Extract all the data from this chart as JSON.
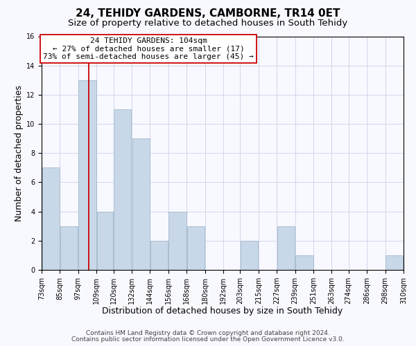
{
  "title": "24, TEHIDY GARDENS, CAMBORNE, TR14 0ET",
  "subtitle": "Size of property relative to detached houses in South Tehidy",
  "xlabel": "Distribution of detached houses by size in South Tehidy",
  "ylabel": "Number of detached properties",
  "footer_line1": "Contains HM Land Registry data © Crown copyright and database right 2024.",
  "footer_line2": "Contains public sector information licensed under the Open Government Licence v3.0.",
  "bin_edges": [
    73,
    85,
    97,
    109,
    120,
    132,
    144,
    156,
    168,
    180,
    192,
    203,
    215,
    227,
    239,
    251,
    263,
    274,
    286,
    298,
    310
  ],
  "bin_labels": [
    "73sqm",
    "85sqm",
    "97sqm",
    "109sqm",
    "120sqm",
    "132sqm",
    "144sqm",
    "156sqm",
    "168sqm",
    "180sqm",
    "192sqm",
    "203sqm",
    "215sqm",
    "227sqm",
    "239sqm",
    "251sqm",
    "263sqm",
    "274sqm",
    "286sqm",
    "298sqm",
    "310sqm"
  ],
  "counts": [
    7,
    3,
    13,
    4,
    11,
    9,
    2,
    4,
    3,
    0,
    0,
    2,
    0,
    3,
    1,
    0,
    0,
    0,
    0,
    1
  ],
  "bar_color": "#c8d8e8",
  "bar_edge_color": "#a0b8cc",
  "vline_x": 104,
  "vline_color": "#cc0000",
  "annotation_text": "24 TEHIDY GARDENS: 104sqm\n← 27% of detached houses are smaller (17)\n73% of semi-detached houses are larger (45) →",
  "annotation_box_edgecolor": "#cc0000",
  "annotation_box_facecolor": "#ffffff",
  "ylim": [
    0,
    16
  ],
  "yticks": [
    0,
    2,
    4,
    6,
    8,
    10,
    12,
    14,
    16
  ],
  "bg_color": "#f8f8ff",
  "grid_color": "#c8d4e8",
  "title_fontsize": 11,
  "subtitle_fontsize": 9.5,
  "axis_label_fontsize": 9,
  "tick_fontsize": 7,
  "annotation_fontsize": 8,
  "footer_fontsize": 6.5
}
